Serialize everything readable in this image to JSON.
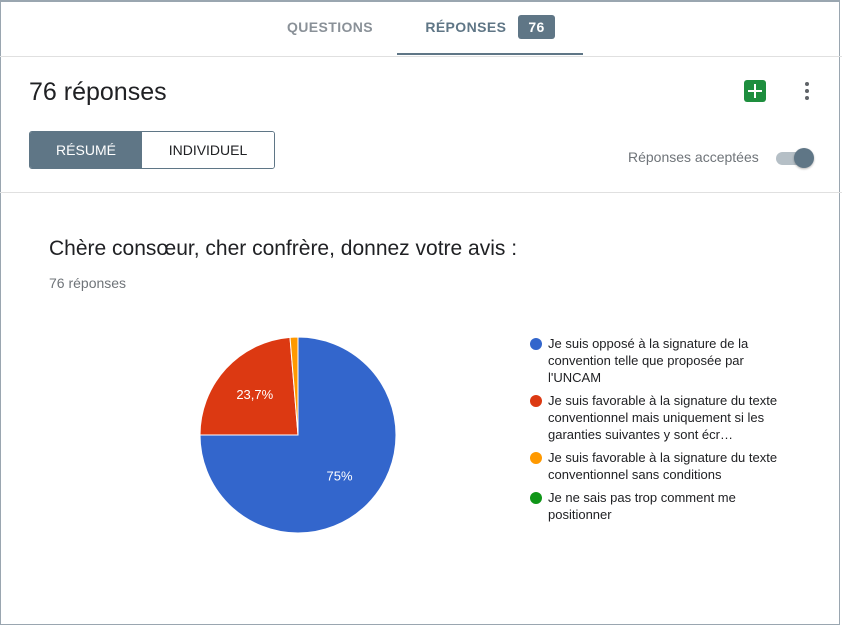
{
  "tabs": {
    "questions": "QUESTIONS",
    "responses": "RÉPONSES",
    "responses_count": "76"
  },
  "header": {
    "title": "76 réponses",
    "summary_label": "RÉSUMÉ",
    "individual_label": "INDIVIDUEL",
    "accepting_label": "Réponses acceptées",
    "accepting_on": true
  },
  "icons": {
    "sheets": "google-sheets-icon",
    "more": "more-vert-icon"
  },
  "question": {
    "title": "Chère consœur, cher confrère, donnez votre avis :",
    "count_label": "76 réponses"
  },
  "chart_data": {
    "type": "pie",
    "title": "",
    "slices": [
      {
        "label": "Je suis opposé à la signature de la convention telle que proposée par l'UNCAM",
        "value": 75,
        "display": "75%",
        "color": "#3366cc"
      },
      {
        "label": "Je suis favorable à la signature du texte conventionnel mais uniquement si les garanties suivantes y sont écr…",
        "value": 23.7,
        "display": "23,7%",
        "color": "#dc3912"
      },
      {
        "label": "Je suis favorable à la signature du texte conventionnel sans conditions",
        "value": 1.3,
        "display": "",
        "color": "#ff9900"
      },
      {
        "label": "Je ne sais pas trop comment me positionner",
        "value": 0,
        "display": "",
        "color": "#109618"
      }
    ],
    "legend_position": "right"
  }
}
